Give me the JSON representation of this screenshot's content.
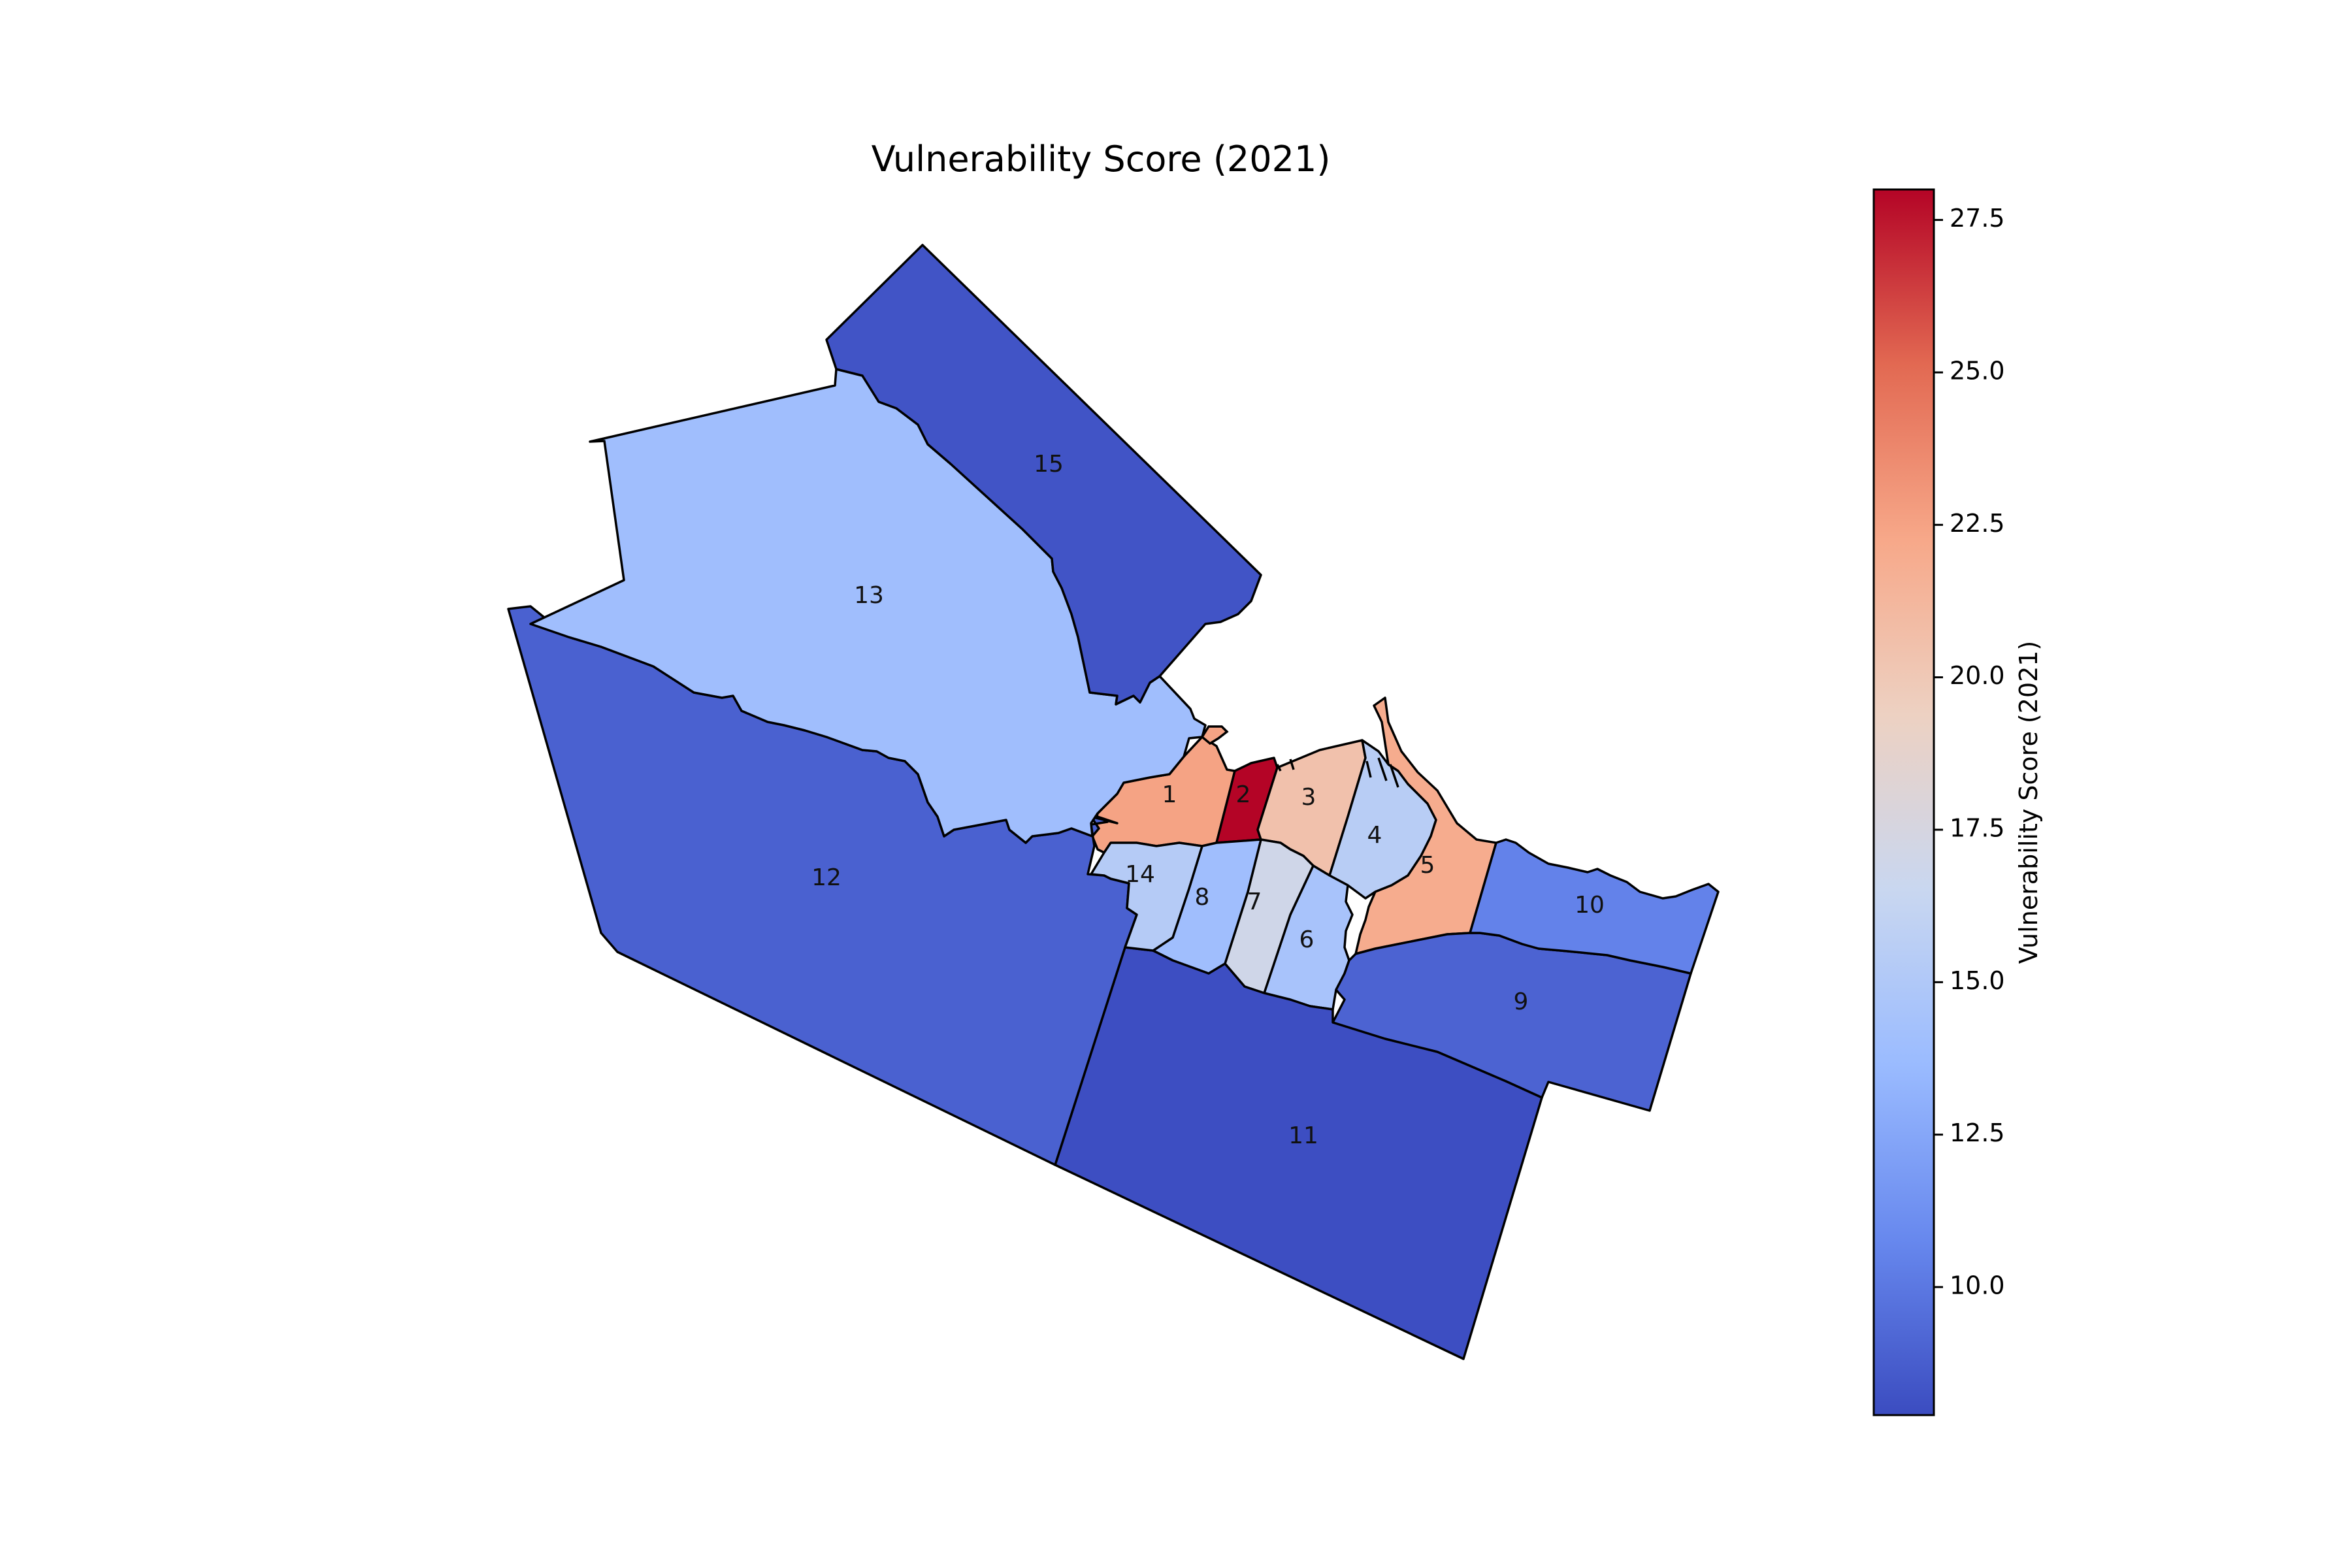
{
  "chart_data": {
    "type": "choropleth",
    "title": "Vulnerability Score (2021)",
    "colorbar": {
      "label": "Vulnerability Score (2021)",
      "range": [
        7.9,
        28.0
      ],
      "ticks": [
        10.0,
        12.5,
        15.0,
        17.5,
        20.0,
        22.5,
        25.0,
        27.5
      ],
      "tick_labels": [
        "10.0",
        "12.5",
        "15.0",
        "17.5",
        "20.0",
        "22.5",
        "25.0",
        "27.5"
      ],
      "colormap": "coolwarm",
      "colormap_stops": [
        "#3b4cc0",
        "#6788ee",
        "#9abbff",
        "#c9d7f0",
        "#edd1c2",
        "#f7a889",
        "#e26952",
        "#b40426"
      ]
    },
    "regions": [
      {
        "label": "1",
        "value": 22.5
      },
      {
        "label": "2",
        "value": 28.0
      },
      {
        "label": "3",
        "value": 20.5
      },
      {
        "label": "4",
        "value": 15.5
      },
      {
        "label": "5",
        "value": 22.0
      },
      {
        "label": "6",
        "value": 14.5
      },
      {
        "label": "7",
        "value": 17.0
      },
      {
        "label": "8",
        "value": 14.0
      },
      {
        "label": "9",
        "value": 9.0
      },
      {
        "label": "10",
        "value": 10.5
      },
      {
        "label": "11",
        "value": 8.0
      },
      {
        "label": "12",
        "value": 8.9
      },
      {
        "label": "13",
        "value": 14.0
      },
      {
        "label": "14",
        "value": 15.3
      },
      {
        "label": "15",
        "value": 8.3
      }
    ]
  }
}
